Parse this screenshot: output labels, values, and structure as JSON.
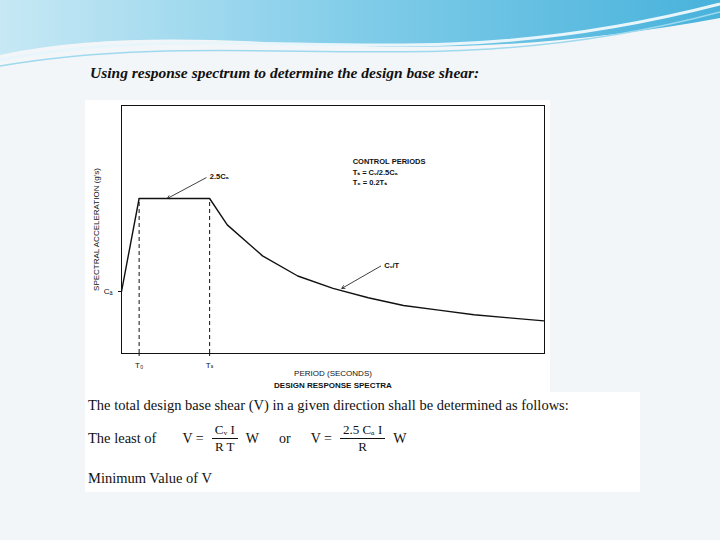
{
  "slide": {
    "heading": "Using response spectrum to determine the design base shear:",
    "intro": "The total design base shear (V) in a given direction shall be determined as follows:",
    "lead": "The least of",
    "formulas": [
      {
        "lhs": "V =",
        "numerator": "Cᵥ I",
        "denominator": "R T",
        "factor": "W"
      },
      {
        "lhs": "V =",
        "numerator": "2.5 Cₐ I",
        "denominator": "R",
        "factor": "W"
      }
    ],
    "connector": "or",
    "minimum": "Minimum Value of V"
  },
  "chart_data": {
    "type": "line",
    "title": "DESIGN RESPONSE SPECTRA",
    "x_label": "PERIOD (SECONDS)",
    "y_label": "SPECTRAL ACCELERATION (g's)",
    "x": [
      0,
      0.1,
      0.5,
      0.6,
      0.8,
      1.0,
      1.2,
      1.4,
      1.6,
      1.8,
      2.0,
      2.2,
      2.4
    ],
    "values": [
      0.4,
      1.0,
      1.0,
      0.83,
      0.63,
      0.5,
      0.42,
      0.36,
      0.31,
      0.28,
      0.25,
      0.23,
      0.21
    ],
    "color": "#111111",
    "xlim": [
      0,
      2.4
    ],
    "ylim": [
      0,
      1.6
    ],
    "xticks": [
      {
        "value": 0.1,
        "label": "T₀"
      },
      {
        "value": 0.5,
        "label": "Tₛ"
      }
    ],
    "yticks": [
      {
        "value": 0.4,
        "label": "Cₐ"
      }
    ],
    "grid": false,
    "annotations": [
      {
        "text": "2.5Cₐ",
        "x": 0.49,
        "y": 1.14,
        "arrow_to": [
          0.26,
          1.0
        ]
      },
      {
        "text": "Cᵥ/T",
        "x": 1.48,
        "y": 0.57,
        "arrow_to": [
          1.25,
          0.42
        ]
      },
      {
        "text": "CONTROL PERIODS",
        "x": 1.3,
        "y": 1.24
      },
      {
        "text": "Tₛ = Cᵥ/2.5Cₐ",
        "x": 1.3,
        "y": 1.17
      },
      {
        "text": "T₀ = 0.2Tₛ",
        "x": 1.3,
        "y": 1.1
      }
    ]
  }
}
